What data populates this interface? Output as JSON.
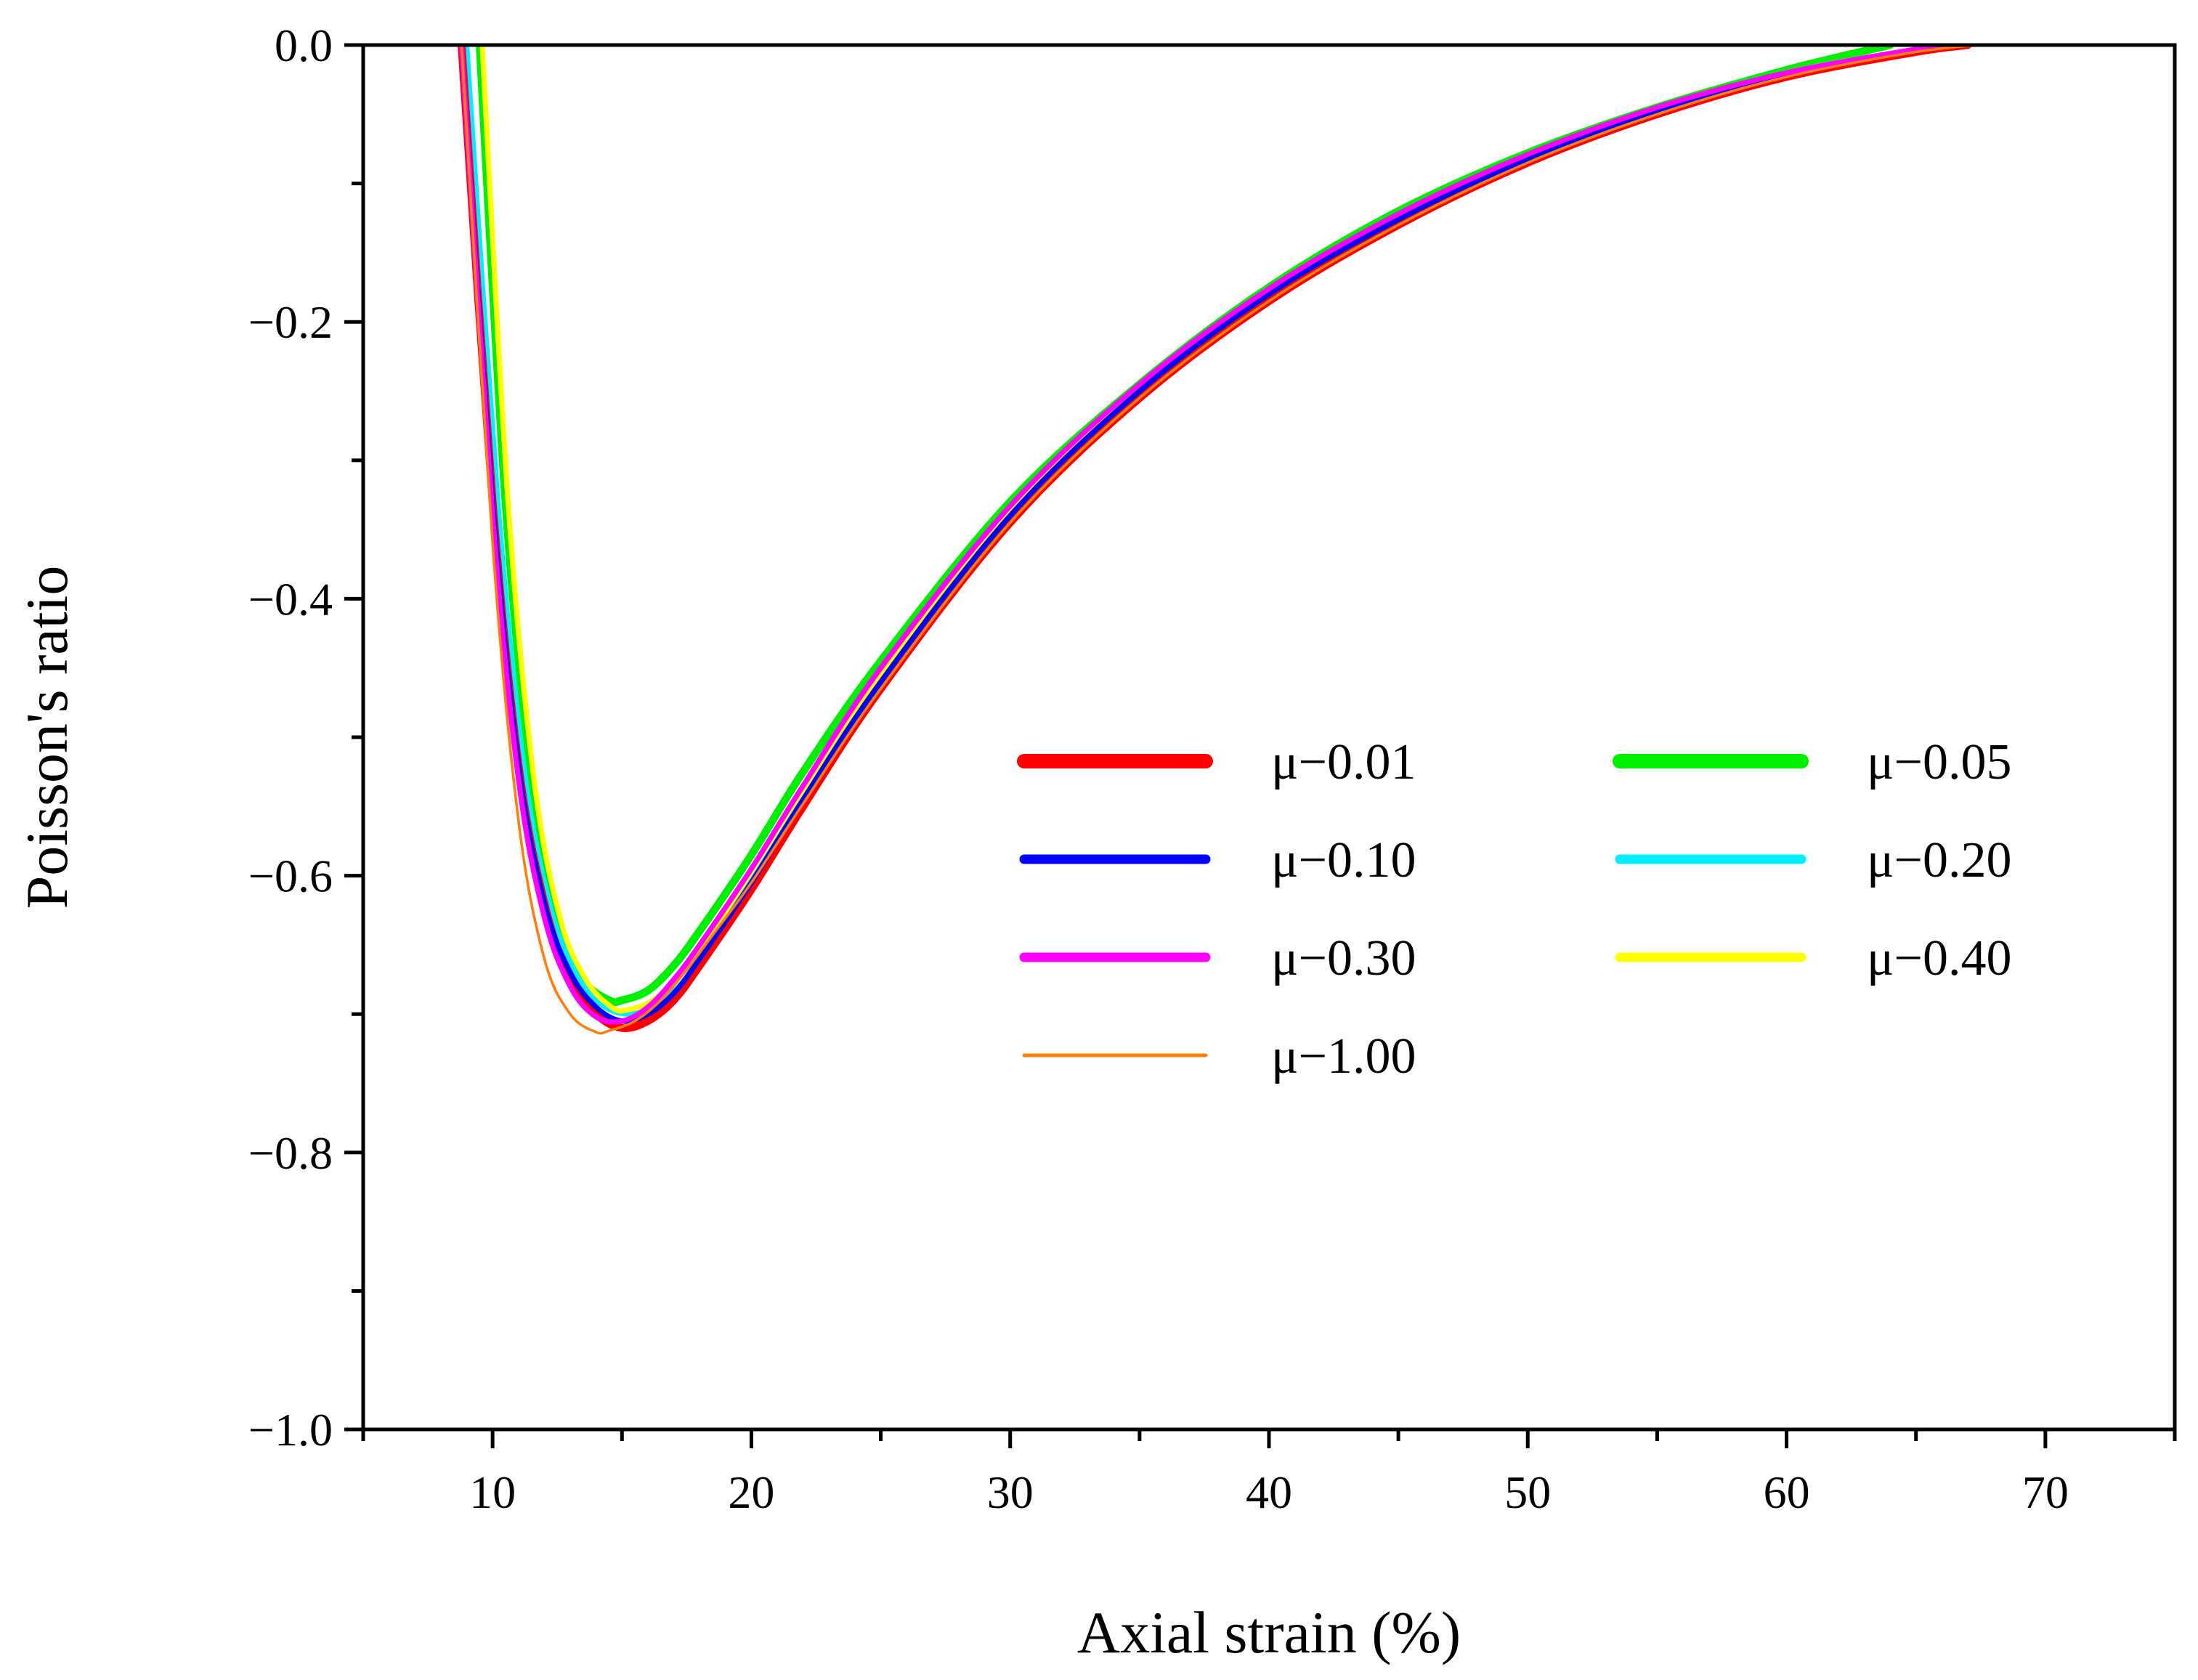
{
  "chart_data": {
    "type": "line",
    "title": "",
    "xlabel": "Axial strain (%)",
    "ylabel": "Poisson's ratio",
    "xlim": [
      5,
      75
    ],
    "ylim": [
      -1.0,
      0.0
    ],
    "x_ticks": [
      10,
      20,
      30,
      40,
      50,
      60,
      70
    ],
    "x_tick_labels": [
      "10",
      "20",
      "30",
      "40",
      "50",
      "60",
      "70"
    ],
    "y_ticks": [
      0.0,
      -0.2,
      -0.4,
      -0.6,
      -0.8,
      -1.0
    ],
    "y_tick_labels": [
      "0.0",
      "−0.2",
      "−0.4",
      "−0.6",
      "−0.8",
      "−1.0"
    ],
    "grid": false,
    "legend_position": "center-right",
    "series": [
      {
        "name": "μ−0.01",
        "color": "#ff0000",
        "x": [
          8.8,
          10,
          11,
          12,
          13,
          14,
          15,
          16,
          17,
          18,
          20,
          22,
          25,
          30,
          35,
          40,
          45,
          50,
          55,
          60,
          65,
          67.0
        ],
        "y": [
          0.0,
          -0.33,
          -0.52,
          -0.62,
          -0.675,
          -0.7,
          -0.71,
          -0.705,
          -0.69,
          -0.665,
          -0.61,
          -0.55,
          -0.465,
          -0.345,
          -0.255,
          -0.185,
          -0.13,
          -0.085,
          -0.05,
          -0.023,
          -0.005,
          0.0
        ]
      },
      {
        "name": "μ−0.05",
        "color": "#00ee00",
        "x": [
          9.5,
          10.5,
          11.5,
          12.5,
          13.5,
          14.5,
          15.0,
          16,
          17,
          18,
          20,
          22,
          25,
          30,
          35,
          40,
          45,
          50,
          55,
          60,
          64.0
        ],
        "y": [
          0.0,
          -0.33,
          -0.53,
          -0.63,
          -0.675,
          -0.69,
          -0.69,
          -0.683,
          -0.665,
          -0.64,
          -0.585,
          -0.525,
          -0.445,
          -0.33,
          -0.245,
          -0.175,
          -0.12,
          -0.078,
          -0.045,
          -0.018,
          0.0
        ]
      },
      {
        "name": "μ−0.10",
        "color": "#0000ff",
        "x": [
          8.8,
          10,
          11,
          12,
          13,
          14,
          15,
          16,
          17,
          18,
          20,
          22,
          25,
          30,
          35,
          40,
          45,
          50,
          55,
          60,
          65,
          66.5
        ],
        "y": [
          0.0,
          -0.33,
          -0.52,
          -0.62,
          -0.67,
          -0.695,
          -0.705,
          -0.7,
          -0.685,
          -0.66,
          -0.605,
          -0.545,
          -0.46,
          -0.34,
          -0.25,
          -0.18,
          -0.126,
          -0.082,
          -0.047,
          -0.021,
          -0.004,
          0.0
        ]
      },
      {
        "name": "μ−0.20",
        "color": "#00eeff",
        "x": [
          9.0,
          10.2,
          11.2,
          12.2,
          13.2,
          14.2,
          15.2,
          16.2,
          17.2,
          18.2,
          20,
          22,
          25,
          30,
          35,
          40,
          45,
          50,
          55,
          60,
          65,
          66.0
        ],
        "y": [
          0.0,
          -0.33,
          -0.52,
          -0.62,
          -0.67,
          -0.693,
          -0.7,
          -0.695,
          -0.68,
          -0.655,
          -0.6,
          -0.54,
          -0.455,
          -0.337,
          -0.248,
          -0.178,
          -0.124,
          -0.08,
          -0.046,
          -0.02,
          -0.003,
          0.0
        ]
      },
      {
        "name": "μ−0.30",
        "color": "#ff00ff",
        "x": [
          8.8,
          10,
          11,
          12,
          13,
          14,
          15,
          16,
          17,
          18,
          20,
          22,
          25,
          30,
          35,
          40,
          45,
          50,
          55,
          60,
          65,
          66.0
        ],
        "y": [
          0.0,
          -0.34,
          -0.53,
          -0.63,
          -0.68,
          -0.702,
          -0.705,
          -0.695,
          -0.675,
          -0.65,
          -0.595,
          -0.535,
          -0.45,
          -0.333,
          -0.245,
          -0.176,
          -0.122,
          -0.079,
          -0.045,
          -0.02,
          -0.003,
          0.0
        ]
      },
      {
        "name": "μ−0.40",
        "color": "#ffff00",
        "x": [
          9.6,
          10.6,
          11.6,
          12.6,
          13.6,
          14.6,
          15.2,
          16.2,
          17.2,
          18.2,
          20,
          22,
          25,
          30,
          35,
          40,
          45,
          50,
          55,
          60,
          65,
          66.0
        ],
        "y": [
          0.0,
          -0.33,
          -0.53,
          -0.63,
          -0.675,
          -0.695,
          -0.697,
          -0.69,
          -0.673,
          -0.648,
          -0.597,
          -0.538,
          -0.455,
          -0.337,
          -0.248,
          -0.178,
          -0.124,
          -0.08,
          -0.046,
          -0.02,
          -0.003,
          0.0
        ]
      },
      {
        "name": "μ−1.00",
        "color": "#ff7f0e",
        "x": [
          8.8,
          10,
          11,
          12,
          13,
          14,
          14.5,
          15.5,
          16.5,
          17.5,
          18.5,
          20,
          22,
          25,
          30,
          35,
          40,
          45,
          50,
          55,
          60,
          65,
          67.5
        ],
        "y": [
          0.0,
          -0.36,
          -0.56,
          -0.66,
          -0.7,
          -0.713,
          -0.712,
          -0.705,
          -0.69,
          -0.668,
          -0.643,
          -0.605,
          -0.548,
          -0.465,
          -0.345,
          -0.255,
          -0.185,
          -0.13,
          -0.085,
          -0.05,
          -0.023,
          -0.005,
          0.0
        ]
      }
    ]
  }
}
